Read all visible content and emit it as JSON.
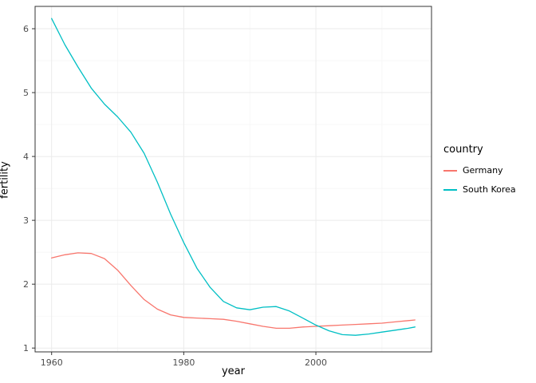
{
  "legend": {
    "title": "country"
  },
  "chart_data": {
    "type": "line",
    "title": "",
    "xlabel": "year",
    "ylabel": "fertility",
    "xlim": [
      1957.5,
      2017.5
    ],
    "ylim": [
      0.94,
      6.35
    ],
    "x_ticks": [
      1960,
      1980,
      2000
    ],
    "x_minor_ticks": [
      1970,
      1990,
      2010
    ],
    "y_ticks": [
      1,
      2,
      3,
      4,
      5,
      6
    ],
    "y_minor_ticks": [
      1.5,
      2.5,
      3.5,
      4.5,
      5.5
    ],
    "grid": true,
    "legend_position": "right",
    "panel_border_color": "#333333",
    "major_grid_color": "#EBEBEB",
    "minor_grid_color": "#F4F4F4",
    "tick_color": "#333333",
    "tick_label_color": "#4D4D4D",
    "x": [
      1960,
      1962,
      1964,
      1966,
      1968,
      1970,
      1972,
      1974,
      1976,
      1978,
      1980,
      1982,
      1984,
      1986,
      1988,
      1990,
      1992,
      1994,
      1996,
      1998,
      2000,
      2002,
      2004,
      2006,
      2008,
      2010,
      2012,
      2014,
      2015
    ],
    "series": [
      {
        "name": "Germany",
        "color": "#F8766D",
        "values": [
          2.41,
          2.46,
          2.49,
          2.48,
          2.4,
          2.22,
          1.98,
          1.76,
          1.61,
          1.52,
          1.48,
          1.47,
          1.46,
          1.45,
          1.42,
          1.38,
          1.34,
          1.31,
          1.31,
          1.33,
          1.34,
          1.35,
          1.36,
          1.37,
          1.38,
          1.39,
          1.41,
          1.43,
          1.44
        ]
      },
      {
        "name": "South Korea",
        "color": "#00BFC4",
        "values": [
          6.16,
          5.75,
          5.4,
          5.07,
          4.82,
          4.62,
          4.38,
          4.05,
          3.6,
          3.1,
          2.65,
          2.25,
          1.95,
          1.73,
          1.63,
          1.6,
          1.64,
          1.65,
          1.58,
          1.47,
          1.36,
          1.27,
          1.21,
          1.2,
          1.22,
          1.25,
          1.28,
          1.31,
          1.33
        ]
      }
    ]
  }
}
